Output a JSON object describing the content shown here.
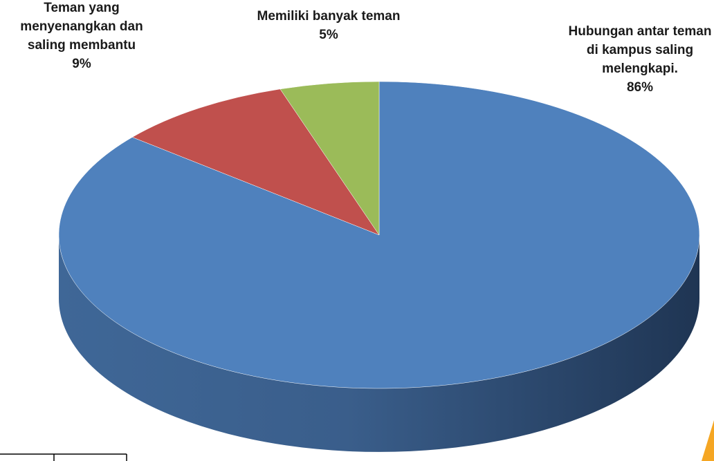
{
  "chart_data": {
    "type": "pie",
    "categories": [
      "Hubungan antar teman di kampus saling melengkapi.",
      "Teman yang menyenangkan dan saling membantu",
      "Memiliki banyak teman"
    ],
    "values": [
      86,
      9,
      5
    ],
    "value_labels": [
      "86%",
      "9%",
      "5%"
    ],
    "colors": [
      "#4f81bd",
      "#c0504d",
      "#9bbb59"
    ]
  }
}
